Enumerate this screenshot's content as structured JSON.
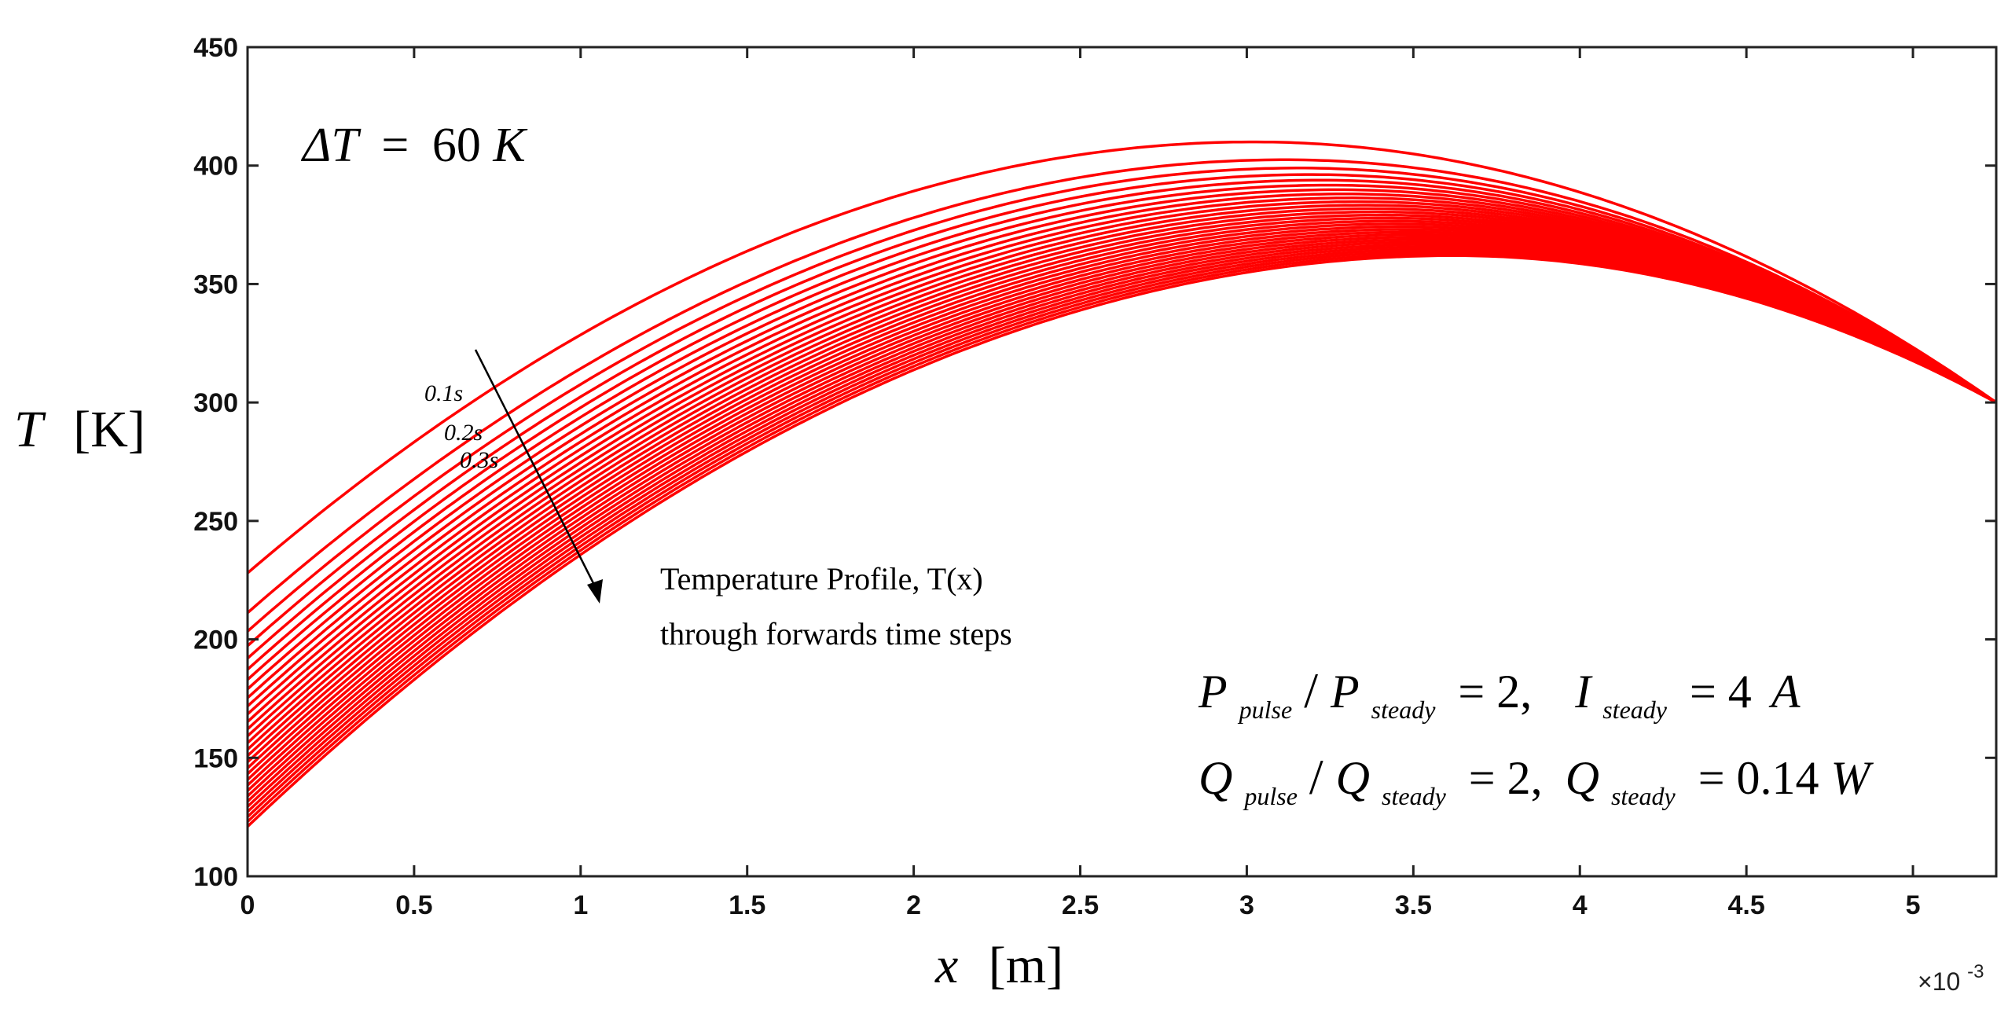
{
  "chart_data": {
    "type": "line",
    "title": "",
    "xlabel": {
      "var": "x",
      "unit": "[m]"
    },
    "ylabel": {
      "var": "T",
      "unit": "[K]"
    },
    "xlim": [
      0,
      0.00525
    ],
    "ylim": [
      100,
      450
    ],
    "x_exponent_label": "×10",
    "x_exponent_power": "-3",
    "x_ticks": [
      0,
      0.5,
      1,
      1.5,
      2,
      2.5,
      3,
      3.5,
      4,
      4.5,
      5
    ],
    "x_tick_labels": [
      "0",
      "0.5",
      "1",
      "1.5",
      "2",
      "2.5",
      "3",
      "3.5",
      "4",
      "4.5",
      "5"
    ],
    "y_ticks": [
      100,
      150,
      200,
      250,
      300,
      350,
      400,
      450
    ],
    "y_tick_labels": [
      "100",
      "150",
      "200",
      "250",
      "300",
      "350",
      "400",
      "450"
    ],
    "series_color": "#ff0000",
    "series_model": {
      "x_end": 0.00525,
      "boundary_T_end": 300,
      "description": "T(x) profiles at successive forward time steps",
      "first": {
        "T0": 228,
        "Tmax": 410,
        "xmax": 0.00302
      },
      "last": {
        "T0": 121,
        "Tmax": 362,
        "xmax": 0.00362
      },
      "count": 30
    },
    "annotations": {
      "delta_t": {
        "lhs": "ΔT",
        "eq": "=",
        "value": "60",
        "unit": "K"
      },
      "time_labels": [
        "0.1s",
        "0.2s",
        "0.3s"
      ],
      "profile_text_line1": "Temperature Profile, T(x)",
      "profile_text_line2": "through forwards time steps",
      "eq1": {
        "P": "P",
        "pulse": "pulse",
        "steady": "steady",
        "ratio": "= 2,",
        "I": "I",
        "I_sub": "steady",
        "I_val": "= 4",
        "I_unit": "A"
      },
      "eq2": {
        "Q": "Q",
        "pulse": "pulse",
        "steady": "steady",
        "ratio": "= 2,",
        "Q2": "Q",
        "Q2_sub": "steady",
        "Q_val": "= 0.14",
        "Q_unit": "W"
      }
    }
  }
}
